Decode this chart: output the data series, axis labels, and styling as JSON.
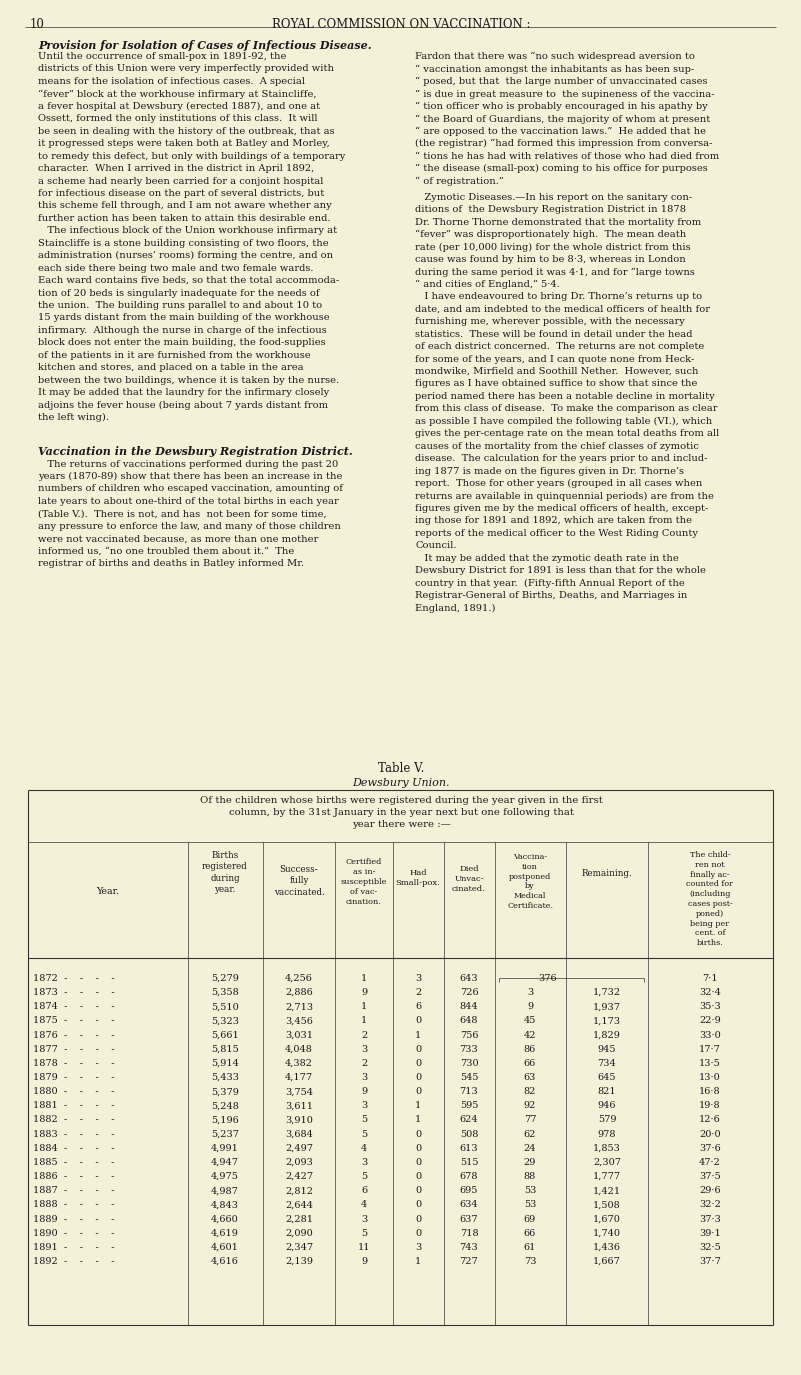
{
  "page_number": "10",
  "page_header": "ROYAL COMMISSION ON VACCINATION :",
  "background_color": "#f5f0d8",
  "text_color": "#1a1a1a",
  "years": [
    "1872",
    "1873",
    "1874",
    "1875",
    "1876",
    "1877",
    "1878",
    "1879",
    "1880",
    "1881",
    "1882",
    "1883",
    "1884",
    "1885",
    "1886",
    "1887",
    "1888",
    "1889",
    "1890",
    "1891",
    "1892"
  ],
  "births": [
    "5,279",
    "5,358",
    "5,510",
    "5,323",
    "5,661",
    "5,815",
    "5,914",
    "5,433",
    "5,379",
    "5,248",
    "5,196",
    "5,237",
    "4,991",
    "4,947",
    "4,975",
    "4,987",
    "4,843",
    "4,660",
    "4,619",
    "4,601",
    "4,616"
  ],
  "vaccinated": [
    "4,256",
    "2,886",
    "2,713",
    "3,456",
    "3,031",
    "4,048",
    "4,382",
    "4,177",
    "3,754",
    "3,611",
    "3,910",
    "3,684",
    "2,497",
    "2,093",
    "2,427",
    "2,812",
    "2,644",
    "2,281",
    "2,090",
    "2,347",
    "2,139"
  ],
  "certified": [
    "1",
    "9",
    "1",
    "1",
    "2",
    "3",
    "2",
    "3",
    "9",
    "3",
    "5",
    "5",
    "4",
    "3",
    "5",
    "6",
    "4",
    "3",
    "5",
    "11",
    "9"
  ],
  "had_smallpox": [
    "3",
    "2",
    "6",
    "0",
    "1",
    "0",
    "0",
    "0",
    "0",
    "1",
    "1",
    "0",
    "0",
    "0",
    "0",
    "0",
    "0",
    "0",
    "0",
    "3",
    "1"
  ],
  "died_unvac": [
    "643",
    "726",
    "844",
    "648",
    "756",
    "733",
    "730",
    "545",
    "713",
    "595",
    "624",
    "508",
    "613",
    "515",
    "678",
    "695",
    "634",
    "637",
    "718",
    "743",
    "727"
  ],
  "postponed": [
    "376",
    "3",
    "9",
    "45",
    "42",
    "86",
    "66",
    "63",
    "82",
    "92",
    "77",
    "62",
    "24",
    "29",
    "88",
    "53",
    "53",
    "69",
    "66",
    "61",
    "73"
  ],
  "remaining": [
    "",
    "1,732",
    "1,937",
    "1,173",
    "1,829",
    "945",
    "734",
    "645",
    "821",
    "946",
    "579",
    "978",
    "1,853",
    "2,307",
    "1,777",
    "1,421",
    "1,508",
    "1,670",
    "1,740",
    "1,436",
    "1,667"
  ],
  "pct_births": [
    "7·1",
    "32·4",
    "35·3",
    "22·9",
    "33·0",
    "17·7",
    "13·5",
    "13·0",
    "16·8",
    "19·8",
    "12·6",
    "20·0",
    "37·6",
    "47·2",
    "37·5",
    "29·6",
    "32·2",
    "37·3",
    "39·1",
    "32·5",
    "37·7"
  ],
  "left_col_lines": [
    "Until the occurrence of small-pox in 1891-92, the",
    "districts of this Union were very imperfectly provided with",
    "means for the isolation of infectious cases.  A special",
    "“fever” block at the workhouse infirmary at Staincliffe,",
    "a fever hospital at Dewsbury (erected 1887), and one at",
    "Ossett, formed the only institutions of this class.  It will",
    "be seen in dealing with the history of the outbreak, that as",
    "it progressed steps were taken both at Batley and Morley,",
    "to remedy this defect, but only with buildings of a temporary",
    "character.  When I arrived in the district in April 1892,",
    "a scheme had nearly been carried for a conjoint hospital",
    "for infectious disease on the part of several districts, but",
    "this scheme fell through, and I am not aware whether any",
    "further action has been taken to attain this desirable end.",
    "   The infectious block of the Union workhouse infirmary at",
    "Staincliffe is a stone building consisting of two floors, the",
    "administration (nurses’ rooms) forming the centre, and on",
    "each side there being two male and two female wards.",
    "Each ward contains five beds, so that the total accommoda-",
    "tion of 20 beds is singularly inadequate for the needs of",
    "the union.  The building runs parallel to and about 10 to",
    "15 yards distant from the main building of the workhouse",
    "infirmary.  Although the nurse in charge of the infectious",
    "block does not enter the main building, the food-supplies",
    "of the patients in it are furnished from the workhouse",
    "kitchen and stores, and placed on a table in the area",
    "between the two buildings, whence it is taken by the nurse.",
    "It may be added that the laundry for the infirmary closely",
    "adjoins the fever house (being about 7 yards distant from",
    "the left wing)."
  ],
  "right_col_lines_1": [
    "Fardon that there was “no such widespread aversion to",
    "“ vaccination amongst the inhabitants as has been sup-",
    "“ posed, but that  the large number of unvaccinated cases",
    "“ is due in great measure to  the supineness of the vaccina-",
    "“ tion officer who is probably encouraged in his apathy by",
    "“ the Board of Guardians, the majority of whom at present",
    "“ are opposed to the vaccination laws.”  He added that he",
    "(the registrar) “had formed this impression from conversa-",
    "“ tions he has had with relatives of those who had died from",
    "“ the disease (small-pox) coming to his office for purposes",
    "“ of registration.”"
  ],
  "right_col_lines_2": [
    "   Zymotic Diseases.—In his report on the sanitary con-",
    "ditions of  the Dewsbury Registration District in 1878",
    "Dr. Thorne Thorne demonstrated that the mortality from",
    "“fever” was disproportionately high.  The mean death",
    "rate (per 10,000 living) for the whole district from this",
    "cause was found by him to be 8·3, whereas in London",
    "during the same period it was 4·1, and for “large towns",
    "“ and cities of England,” 5·4.",
    "   I have endeavoured to bring Dr. Thorne’s returns up to",
    "date, and am indebted to the medical officers of health for",
    "furnishing me, wherever possible, with the necessary",
    "statistics.  These will be found in detail under the head",
    "of each district concerned.  The returns are not complete",
    "for some of the years, and I can quote none from Heck-",
    "mondwike, Mirfield and Soothill Nether.  However, such",
    "figures as I have obtained suffice to show that since the",
    "period named there has been a notable decline in mortality",
    "from this class of disease.  To make the comparison as clear",
    "as possible I have compiled the following table (VI.), which",
    "gives the per-centage rate on the mean total deaths from all",
    "causes of the mortality from the chief classes of zymotic",
    "disease.  The calculation for the years prior to and includ-",
    "ing 1877 is made on the figures given in Dr. Thorne’s",
    "report.  Those for other years (grouped in all cases when",
    "returns are available in quinquennial periods) are from the",
    "figures given me by the medical officers of health, except-",
    "ing those for 1891 and 1892, which are taken from the",
    "reports of the medical officer to the West Riding County",
    "Council.",
    "   It may be added that the zymotic death rate in the",
    "Dewsbury District for 1891 is less than that for the whole",
    "country in that year.  (Fifty-fifth Annual Report of the",
    "Registrar-General of Births, Deaths, and Marriages in",
    "England, 1891.)"
  ],
  "left_col_sec2_lines": [
    "   The returns of vaccinations performed during the past 20",
    "years (1870-89) show that there has been an increase in the",
    "numbers of children who escaped vaccination, amounting of",
    "late years to about one-third of the total births in each year",
    "(Table V.).  There is not, and has  not been for some time,",
    "any pressure to enforce the law, and many of those children",
    "were not vaccinated because, as more than one mother",
    "informed us, “no one troubled them about it.”  The",
    "registrar of births and deaths in Batley informed Mr."
  ]
}
